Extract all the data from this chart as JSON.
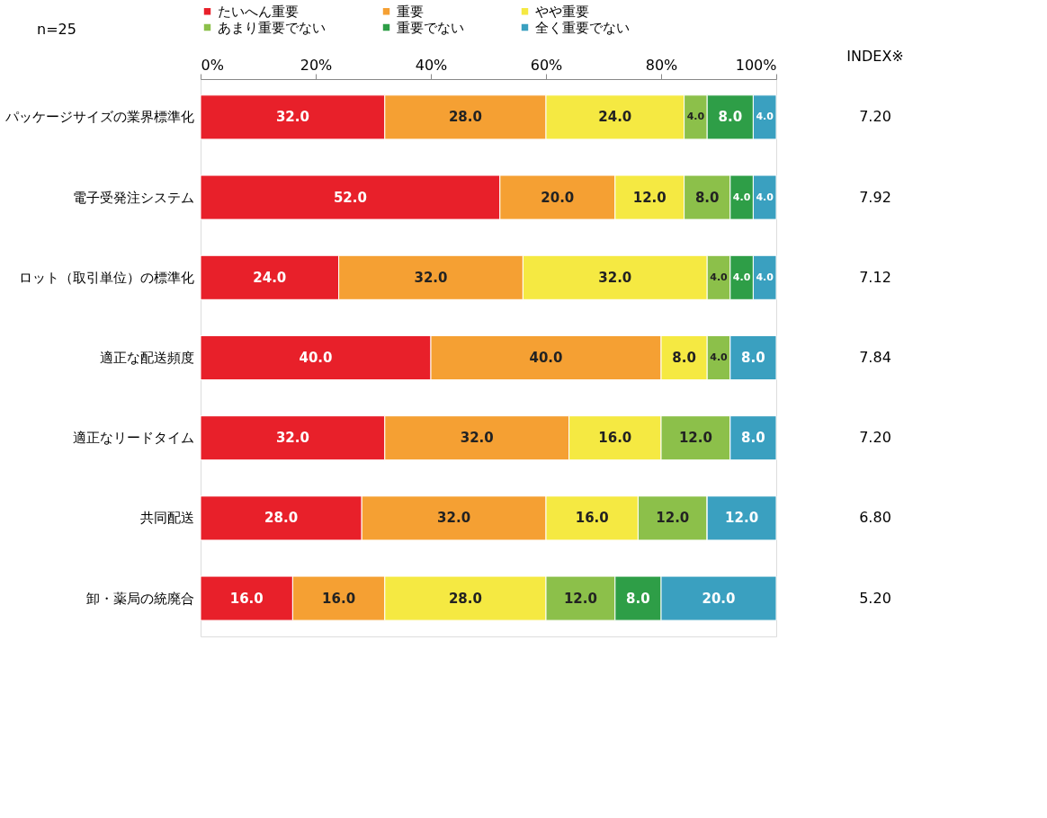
{
  "chart_data": {
    "type": "bar",
    "orientation": "horizontal",
    "stacked": true,
    "legend": "top",
    "grid": false,
    "categories": [
      "パッケージサイズの業界標準化",
      "電子受発注システム",
      "ロット（取引単位）の標準化",
      "適正な配送頻度",
      "適正なリードタイム",
      "共同配送",
      "卸・薬局の統廃合"
    ],
    "xlim": [
      0,
      100
    ],
    "xticks": [
      {
        "value": 0,
        "label": "0%"
      },
      {
        "value": 20,
        "label": "20%"
      },
      {
        "value": 40,
        "label": "40%"
      },
      {
        "value": 60,
        "label": "60%"
      },
      {
        "value": 80,
        "label": "80%"
      },
      {
        "value": 100,
        "label": "100%"
      }
    ],
    "series": [
      {
        "name": "たいへん重要",
        "color": "#e8202a",
        "values": [
          32,
          52,
          24,
          40,
          32,
          28,
          16
        ],
        "value_labels": [
          "32.0",
          "52.0",
          "24.0",
          "40.0",
          "32.0",
          "28.0",
          "16.0"
        ]
      },
      {
        "name": "重要",
        "color": "#f5a033",
        "values": [
          28,
          20,
          32,
          40,
          32,
          32,
          16
        ],
        "value_labels": [
          "28.0",
          "20.0",
          "32.0",
          "40.0",
          "32.0",
          "32.0",
          "16.0"
        ]
      },
      {
        "name": "やや重要",
        "color": "#f5e942",
        "values": [
          24,
          12,
          32,
          8,
          16,
          16,
          28
        ],
        "value_labels": [
          "24.0",
          "12.0",
          "32.0",
          "8.0",
          "16.0",
          "16.0",
          "28.0"
        ]
      },
      {
        "name": "あまり重要でない",
        "color": "#8cc04a",
        "values": [
          4,
          8,
          4,
          4,
          12,
          12,
          12
        ],
        "value_labels": [
          "4.0",
          "8.0",
          "4.0",
          "4.0",
          "12.0",
          "12.0",
          "12.0"
        ]
      },
      {
        "name": "重要でない",
        "color": "#2e9e47",
        "values": [
          8,
          4,
          4,
          0,
          0,
          0,
          8
        ],
        "value_labels": [
          "8.0",
          "4.0",
          "4.0",
          null,
          null,
          null,
          "8.0"
        ]
      },
      {
        "name": "全く重要でない",
        "color": "#3aa0c0",
        "values": [
          4,
          4,
          4,
          8,
          8,
          12,
          20
        ],
        "value_labels": [
          "4.0",
          "4.0",
          "4.0",
          "8.0",
          "8.0",
          "12.0",
          "20.0"
        ]
      }
    ],
    "annotations": [
      "n=25",
      "INDEX※",
      "7.20",
      "7.92",
      "7.12",
      "7.84",
      "7.20",
      "6.80",
      "5.20"
    ]
  }
}
